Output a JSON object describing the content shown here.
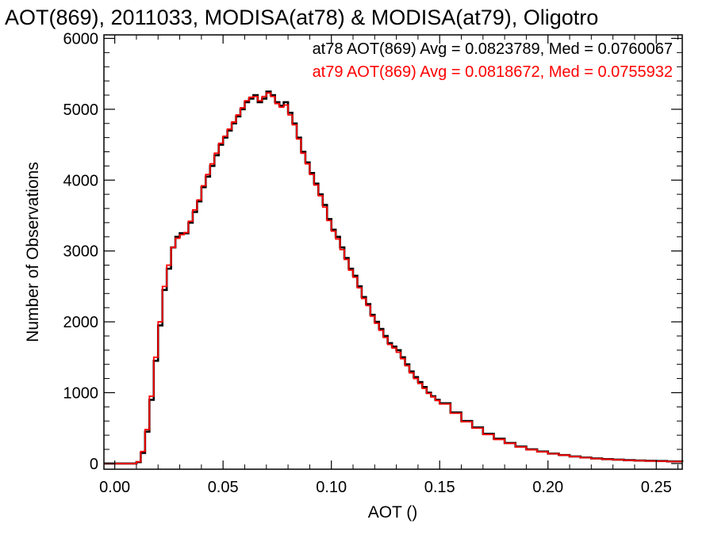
{
  "chart_data": {
    "type": "line",
    "title": "AOT(869), 2011033, MODISA(at78) & MODISA(at79), Oligotro",
    "xlabel": "AOT ()",
    "ylabel": "Number of Observations",
    "xlim": [
      -0.005,
      0.262
    ],
    "ylim": [
      -80,
      6050
    ],
    "x_ticks": [
      0.0,
      0.05,
      0.1,
      0.15,
      0.2,
      0.25
    ],
    "x_tick_labels": [
      "0.00",
      "0.05",
      "0.10",
      "0.15",
      "0.20",
      "0.25"
    ],
    "y_ticks": [
      0,
      1000,
      2000,
      3000,
      4000,
      5000,
      6000
    ],
    "y_tick_labels": [
      "0",
      "1000",
      "2000",
      "3000",
      "4000",
      "5000",
      "6000"
    ],
    "legend": [
      {
        "text": "at78 AOT(869) Avg = 0.0823789, Med = 0.0760067",
        "color": "#000000"
      },
      {
        "text": "at79 AOT(869) Avg = 0.0818672, Med = 0.0755932",
        "color": "#ff0000"
      }
    ],
    "legend_position": "top-right",
    "grid": false,
    "step": true,
    "series": [
      {
        "name": "at78",
        "color": "#000000",
        "x": [
          -0.005,
          0.0,
          0.005,
          0.008,
          0.01,
          0.012,
          0.014,
          0.016,
          0.018,
          0.02,
          0.022,
          0.024,
          0.026,
          0.028,
          0.03,
          0.032,
          0.034,
          0.036,
          0.038,
          0.04,
          0.042,
          0.044,
          0.046,
          0.048,
          0.05,
          0.052,
          0.054,
          0.056,
          0.058,
          0.06,
          0.062,
          0.064,
          0.066,
          0.068,
          0.07,
          0.072,
          0.074,
          0.076,
          0.078,
          0.08,
          0.082,
          0.084,
          0.086,
          0.088,
          0.09,
          0.092,
          0.094,
          0.096,
          0.098,
          0.1,
          0.102,
          0.104,
          0.106,
          0.108,
          0.11,
          0.112,
          0.114,
          0.116,
          0.118,
          0.12,
          0.122,
          0.124,
          0.126,
          0.128,
          0.13,
          0.132,
          0.134,
          0.136,
          0.138,
          0.14,
          0.142,
          0.144,
          0.146,
          0.148,
          0.15,
          0.155,
          0.16,
          0.165,
          0.17,
          0.175,
          0.18,
          0.185,
          0.19,
          0.195,
          0.2,
          0.205,
          0.21,
          0.215,
          0.22,
          0.225,
          0.23,
          0.235,
          0.24,
          0.245,
          0.25,
          0.255,
          0.262
        ],
        "y": [
          0,
          0,
          0,
          0,
          20,
          150,
          450,
          900,
          1450,
          1950,
          2450,
          2750,
          3050,
          3200,
          3250,
          3250,
          3400,
          3550,
          3700,
          3900,
          4050,
          4200,
          4350,
          4500,
          4600,
          4700,
          4800,
          4900,
          5000,
          5100,
          5150,
          5200,
          5100,
          5150,
          5250,
          5200,
          5100,
          5050,
          5100,
          4950,
          4800,
          4600,
          4400,
          4250,
          4100,
          3950,
          3800,
          3650,
          3450,
          3300,
          3200,
          3050,
          2900,
          2750,
          2650,
          2500,
          2350,
          2250,
          2100,
          2000,
          1900,
          1800,
          1700,
          1650,
          1600,
          1500,
          1400,
          1300,
          1220,
          1150,
          1080,
          1000,
          950,
          900,
          850,
          720,
          600,
          510,
          420,
          350,
          290,
          240,
          200,
          170,
          140,
          120,
          100,
          85,
          72,
          62,
          55,
          48,
          42,
          38,
          35,
          30,
          25
        ]
      },
      {
        "name": "at79",
        "color": "#ff0000",
        "x": [
          -0.005,
          0.0,
          0.005,
          0.008,
          0.01,
          0.012,
          0.014,
          0.016,
          0.018,
          0.02,
          0.022,
          0.024,
          0.026,
          0.028,
          0.03,
          0.032,
          0.034,
          0.036,
          0.038,
          0.04,
          0.042,
          0.044,
          0.046,
          0.048,
          0.05,
          0.052,
          0.054,
          0.056,
          0.058,
          0.06,
          0.062,
          0.064,
          0.066,
          0.068,
          0.07,
          0.072,
          0.074,
          0.076,
          0.078,
          0.08,
          0.082,
          0.084,
          0.086,
          0.088,
          0.09,
          0.092,
          0.094,
          0.096,
          0.098,
          0.1,
          0.102,
          0.104,
          0.106,
          0.108,
          0.11,
          0.112,
          0.114,
          0.116,
          0.118,
          0.12,
          0.122,
          0.124,
          0.126,
          0.128,
          0.13,
          0.132,
          0.134,
          0.136,
          0.138,
          0.14,
          0.142,
          0.144,
          0.146,
          0.148,
          0.15,
          0.155,
          0.16,
          0.165,
          0.17,
          0.175,
          0.18,
          0.185,
          0.19,
          0.195,
          0.2,
          0.205,
          0.21,
          0.215,
          0.22,
          0.225,
          0.23,
          0.235,
          0.24,
          0.245,
          0.25,
          0.255,
          0.262
        ],
        "y": [
          0,
          0,
          0,
          0,
          25,
          170,
          480,
          950,
          1500,
          2000,
          2500,
          2800,
          3050,
          3180,
          3230,
          3260,
          3420,
          3580,
          3720,
          3920,
          4080,
          4230,
          4380,
          4520,
          4620,
          4720,
          4820,
          4920,
          5020,
          5120,
          5170,
          5180,
          5120,
          5180,
          5230,
          5180,
          5080,
          5030,
          5060,
          4920,
          4780,
          4580,
          4380,
          4230,
          4080,
          3930,
          3780,
          3620,
          3430,
          3280,
          3170,
          3020,
          2880,
          2730,
          2630,
          2480,
          2330,
          2230,
          2080,
          1980,
          1880,
          1780,
          1680,
          1630,
          1570,
          1480,
          1380,
          1280,
          1200,
          1130,
          1060,
          990,
          940,
          890,
          840,
          710,
          590,
          500,
          410,
          340,
          285,
          235,
          195,
          165,
          138,
          118,
          98,
          82,
          70,
          60,
          53,
          46,
          40,
          36,
          33,
          28,
          22
        ]
      }
    ]
  }
}
